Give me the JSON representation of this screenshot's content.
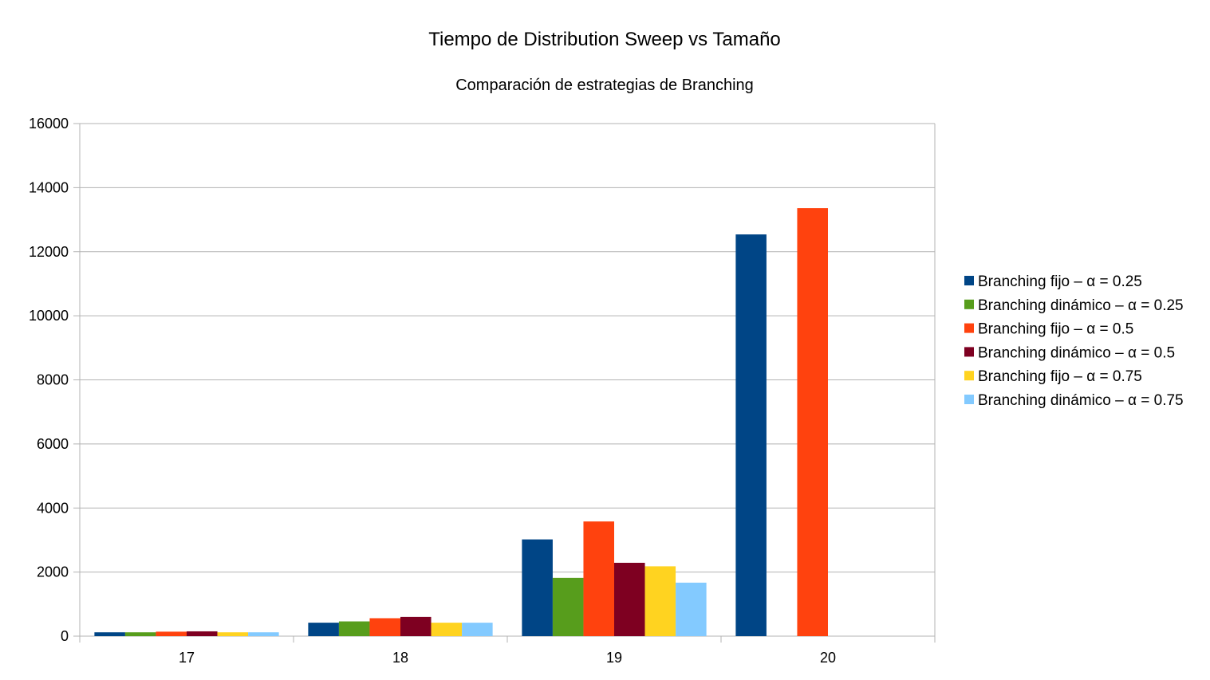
{
  "chart_data": {
    "type": "bar",
    "title": "Tiempo de Distribution Sweep vs Tamaño",
    "subtitle": "Comparación de estrategias de Branching",
    "xlabel": "",
    "ylabel": "",
    "categories": [
      "17",
      "18",
      "19",
      "20"
    ],
    "ylim": [
      0,
      16000
    ],
    "yticks": [
      0,
      2000,
      4000,
      6000,
      8000,
      10000,
      12000,
      14000,
      16000
    ],
    "grid": true,
    "legend_position": "right",
    "series": [
      {
        "name": "Branching fijo – α = 0.25",
        "color": "#004586",
        "values": [
          120,
          420,
          3020,
          12540
        ]
      },
      {
        "name": "Branching dinámico – α = 0.25",
        "color": "#579d1c",
        "values": [
          120,
          460,
          1820,
          null
        ]
      },
      {
        "name": "Branching fijo – α = 0.5",
        "color": "#ff420e",
        "values": [
          140,
          560,
          3580,
          13360
        ]
      },
      {
        "name": "Branching dinámico – α = 0.5",
        "color": "#7e0021",
        "values": [
          150,
          600,
          2290,
          null
        ]
      },
      {
        "name": "Branching fijo – α = 0.75",
        "color": "#ffd320",
        "values": [
          120,
          420,
          2180,
          null
        ]
      },
      {
        "name": "Branching dinámico – α = 0.75",
        "color": "#83caff",
        "values": [
          120,
          420,
          1670,
          null
        ]
      }
    ]
  }
}
